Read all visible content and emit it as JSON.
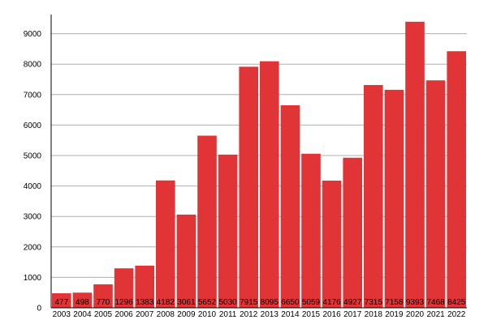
{
  "chart_data": {
    "type": "bar",
    "title": "",
    "xlabel": "",
    "ylabel": "",
    "categories": [
      "2003",
      "2004",
      "2005",
      "2006",
      "2007",
      "2008",
      "2009",
      "2010",
      "2011",
      "2012",
      "2013",
      "2014",
      "2015",
      "2016",
      "2017",
      "2018",
      "2019",
      "2020",
      "2021",
      "2022"
    ],
    "values": [
      477,
      498,
      770,
      1296,
      1383,
      4182,
      3061,
      5652,
      5030,
      7915,
      8095,
      6650,
      5059,
      4176,
      4927,
      7315,
      7158,
      9393,
      7468,
      8425
    ],
    "ylim": [
      0,
      10000
    ],
    "yticks": [
      0,
      1000,
      2000,
      3000,
      4000,
      5000,
      6000,
      7000,
      8000,
      9000
    ],
    "grid": true,
    "legend": "none",
    "bar_color": "#e03437",
    "grid_color": "#b0b0b0"
  }
}
